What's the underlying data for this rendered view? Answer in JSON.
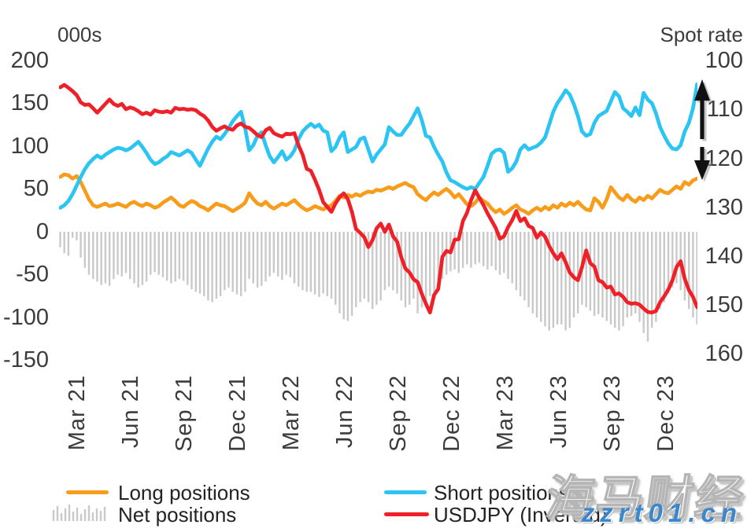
{
  "header": {
    "left_axis_title": "000s",
    "right_axis_title": "Spot rate"
  },
  "left_axis": {
    "ticks": [
      "200",
      "150",
      "100",
      "50",
      "0",
      "-50",
      "-100",
      "-150"
    ],
    "min": -150,
    "max": 200
  },
  "right_axis": {
    "ticks": [
      "100",
      "110",
      "120",
      "130",
      "140",
      "150",
      "160"
    ],
    "min": 100,
    "max": 160,
    "inverted": true
  },
  "x_axis": {
    "labels": [
      "Mar 21",
      "Jun 21",
      "Sep 21",
      "Dec 21",
      "Mar 22",
      "Jun 22",
      "Sep 22",
      "Dec 22",
      "Mar 23",
      "Jun 23",
      "Sep 23",
      "Dec 23"
    ]
  },
  "legend": {
    "long_label": "Long positions",
    "net_label": "Net positions",
    "short_label": "Short positions",
    "usdjpy_label": "USDJPY (Inverted)"
  },
  "watermark": {
    "brand": "海马财经",
    "url": "zzrt01.cn"
  },
  "colors": {
    "long": "#F89C1C",
    "short": "#2BC4F3",
    "usdjpy": "#F02028",
    "net": "#C9C9C9",
    "arrow": "#111111",
    "arrow_shadow": "#9a9a9a"
  },
  "chart_data": {
    "type": "mixed",
    "subtypes": {
      "long": "line",
      "short": "line",
      "usdjpy": "line",
      "net": "bar"
    },
    "x_unit": "week",
    "weeks_total": 156,
    "tick_weeks": [
      4,
      17,
      30,
      43,
      56,
      69,
      82,
      95,
      108,
      121,
      134,
      147
    ],
    "tick_labels": [
      "Mar 21",
      "Jun 21",
      "Sep 21",
      "Dec 21",
      "Mar 22",
      "Jun 22",
      "Sep 22",
      "Dec 22",
      "Mar 23",
      "Jun 23",
      "Sep 23",
      "Dec 23"
    ],
    "left_axis_range": [
      -150,
      200
    ],
    "right_axis_range": [
      100,
      160
    ],
    "right_axis_inverted": true,
    "grid": false,
    "legend_position": "bottom",
    "series": [
      {
        "name": "Long positions",
        "axis": "left",
        "type": "line",
        "color": "#F89C1C",
        "values": [
          64,
          67,
          66,
          62,
          65,
          58,
          48,
          38,
          31,
          29,
          31,
          33,
          30,
          31,
          33,
          31,
          29,
          33,
          35,
          32,
          30,
          33,
          31,
          28,
          30,
          34,
          37,
          40,
          36,
          31,
          29,
          33,
          36,
          34,
          30,
          28,
          25,
          29,
          33,
          31,
          30,
          27,
          24,
          27,
          30,
          34,
          45,
          38,
          33,
          31,
          35,
          30,
          27,
          30,
          33,
          31,
          34,
          37,
          32,
          28,
          25,
          27,
          30,
          28,
          26,
          29,
          31,
          36,
          42,
          40,
          43,
          41,
          44,
          42,
          45,
          47,
          46,
          49,
          48,
          50,
          52,
          50,
          53,
          55,
          57,
          54,
          52,
          44,
          40,
          37,
          42,
          46,
          43,
          47,
          50,
          46,
          40,
          44,
          38,
          32,
          30,
          34,
          40,
          36,
          33,
          27,
          23,
          26,
          21,
          24,
          28,
          31,
          26,
          24,
          21,
          25,
          28,
          25,
          29,
          26,
          31,
          28,
          33,
          30,
          34,
          31,
          35,
          30,
          26,
          25,
          39,
          35,
          28,
          38,
          52,
          46,
          40,
          37,
          43,
          38,
          35,
          40,
          37,
          42,
          39,
          44,
          49,
          46,
          45,
          49,
          53,
          50,
          58,
          55,
          60,
          62
        ]
      },
      {
        "name": "Short positions",
        "axis": "left",
        "type": "line",
        "color": "#2BC4F3",
        "values": [
          28,
          31,
          36,
          44,
          54,
          64,
          73,
          80,
          85,
          89,
          86,
          90,
          93,
          96,
          98,
          97,
          95,
          97,
          101,
          105,
          99,
          92,
          84,
          79,
          81,
          85,
          88,
          93,
          91,
          89,
          92,
          95,
          92,
          84,
          77,
          87,
          97,
          105,
          111,
          108,
          114,
          121,
          129,
          135,
          140,
          121,
          95,
          101,
          112,
          116,
          101,
          88,
          81,
          87,
          94,
          84,
          88,
          95,
          108,
          117,
          122,
          126,
          122,
          125,
          118,
          116,
          94,
          99,
          110,
          116,
          93,
          96,
          99,
          108,
          110,
          96,
          82,
          90,
          96,
          102,
          122,
          117,
          113,
          113,
          120,
          126,
          135,
          144,
          130,
          112,
          110,
          99,
          90,
          82,
          69,
          60,
          58,
          55,
          52,
          50,
          52,
          50,
          57,
          64,
          77,
          91,
          95,
          96,
          92,
          70,
          74,
          82,
          96,
          101,
          96,
          98,
          100,
          104,
          110,
          125,
          140,
          150,
          157,
          165,
          160,
          149,
          135,
          117,
          112,
          114,
          127,
          135,
          138,
          141,
          152,
          163,
          158,
          144,
          140,
          135,
          145,
          136,
          162,
          154,
          150,
          138,
          122,
          112,
          103,
          97,
          96,
          101,
          117,
          127,
          144,
          172
        ]
      },
      {
        "name": "Net positions",
        "axis": "left",
        "type": "bar",
        "color": "#C9C9C9",
        "values": [
          -18,
          -25,
          -28,
          -7,
          -10,
          -30,
          -42,
          -50,
          -55,
          -58,
          -62,
          -60,
          -63,
          -55,
          -50,
          -52,
          -48,
          -55,
          -60,
          -65,
          -62,
          -58,
          -50,
          -47,
          -50,
          -53,
          -57,
          -60,
          -58,
          -55,
          -57,
          -62,
          -67,
          -70,
          -72,
          -75,
          -80,
          -82,
          -78,
          -75,
          -68,
          -65,
          -70,
          -73,
          -75,
          -70,
          -55,
          -60,
          -65,
          -63,
          -58,
          -52,
          -48,
          -52,
          -56,
          -50,
          -53,
          -60,
          -64,
          -68,
          -70,
          -70,
          -73,
          -76,
          -72,
          -75,
          -78,
          -85,
          -95,
          -102,
          -104,
          -98,
          -88,
          -82,
          -78,
          -82,
          -90,
          -85,
          -80,
          -68,
          -64,
          -68,
          -72,
          -80,
          -88,
          -85,
          -78,
          -95,
          -88,
          -82,
          -75,
          -70,
          -62,
          -55,
          -50,
          -46,
          -44,
          -48,
          -42,
          -38,
          -42,
          -38,
          -36,
          -40,
          -44,
          -40,
          -45,
          -50,
          -48,
          -55,
          -60,
          -68,
          -75,
          -80,
          -88,
          -95,
          -100,
          -105,
          -110,
          -115,
          -112,
          -108,
          -108,
          -115,
          -112,
          -100,
          -95,
          -85,
          -88,
          -92,
          -98,
          -96,
          -100,
          -104,
          -108,
          -112,
          -115,
          -110,
          -100,
          -98,
          -95,
          -105,
          -118,
          -128,
          -112,
          -105,
          -90,
          -82,
          -72,
          -65,
          -60,
          -68,
          -80,
          -90,
          -100,
          -108
        ]
      },
      {
        "name": "USDJPY (Inverted)",
        "axis": "right",
        "type": "line",
        "color": "#F02028",
        "values": [
          105.4,
          104.9,
          105.5,
          106.2,
          107.0,
          108.5,
          109.0,
          108.9,
          109.7,
          110.6,
          109.7,
          108.8,
          107.9,
          108.8,
          109.2,
          108.8,
          109.9,
          109.5,
          109.8,
          110.3,
          110.9,
          110.6,
          111.0,
          110.1,
          110.4,
          110.5,
          110.3,
          110.6,
          109.6,
          109.9,
          109.8,
          110.0,
          109.9,
          110.1,
          110.8,
          111.3,
          112.2,
          113.5,
          114.3,
          113.8,
          113.4,
          113.9,
          114.1,
          113.2,
          112.8,
          113.5,
          113.7,
          114.4,
          115.2,
          115.6,
          114.2,
          113.7,
          114.8,
          115.2,
          115.5,
          114.9,
          115.0,
          114.8,
          117.3,
          119.2,
          122.1,
          122.5,
          124.3,
          126.4,
          128.9,
          129.9,
          130.9,
          129.2,
          127.9,
          127.1,
          128.3,
          130.9,
          134.4,
          135.2,
          136.1,
          138.1,
          136.7,
          134.3,
          133.3,
          135.0,
          133.5,
          135.9,
          137.0,
          140.2,
          142.5,
          143.3,
          144.7,
          145.3,
          147.7,
          149.7,
          151.5,
          147.9,
          146.7,
          140.1,
          138.9,
          139.2,
          136.6,
          136.5,
          132.8,
          131.1,
          128.5,
          126.5,
          128.0,
          129.5,
          131.2,
          132.7,
          134.2,
          136.4,
          135.9,
          134.0,
          132.6,
          130.7,
          132.8,
          132.2,
          133.8,
          134.2,
          136.2,
          135.1,
          136.0,
          137.9,
          139.4,
          140.6,
          139.4,
          141.2,
          143.3,
          144.3,
          144.9,
          142.2,
          138.8,
          141.4,
          142.1,
          144.9,
          145.3,
          146.4,
          146.2,
          147.8,
          147.6,
          148.3,
          149.4,
          149.7,
          149.6,
          149.9,
          150.7,
          151.4,
          151.5,
          151.2,
          149.4,
          148.2,
          146.8,
          144.9,
          142.2,
          141.0,
          144.6,
          146.9,
          148.3,
          150.4
        ]
      }
    ],
    "annotation": {
      "name": "spot-rate-up-down-arrows",
      "axis": "right",
      "between_ticks": [
        "110",
        "120"
      ]
    }
  }
}
